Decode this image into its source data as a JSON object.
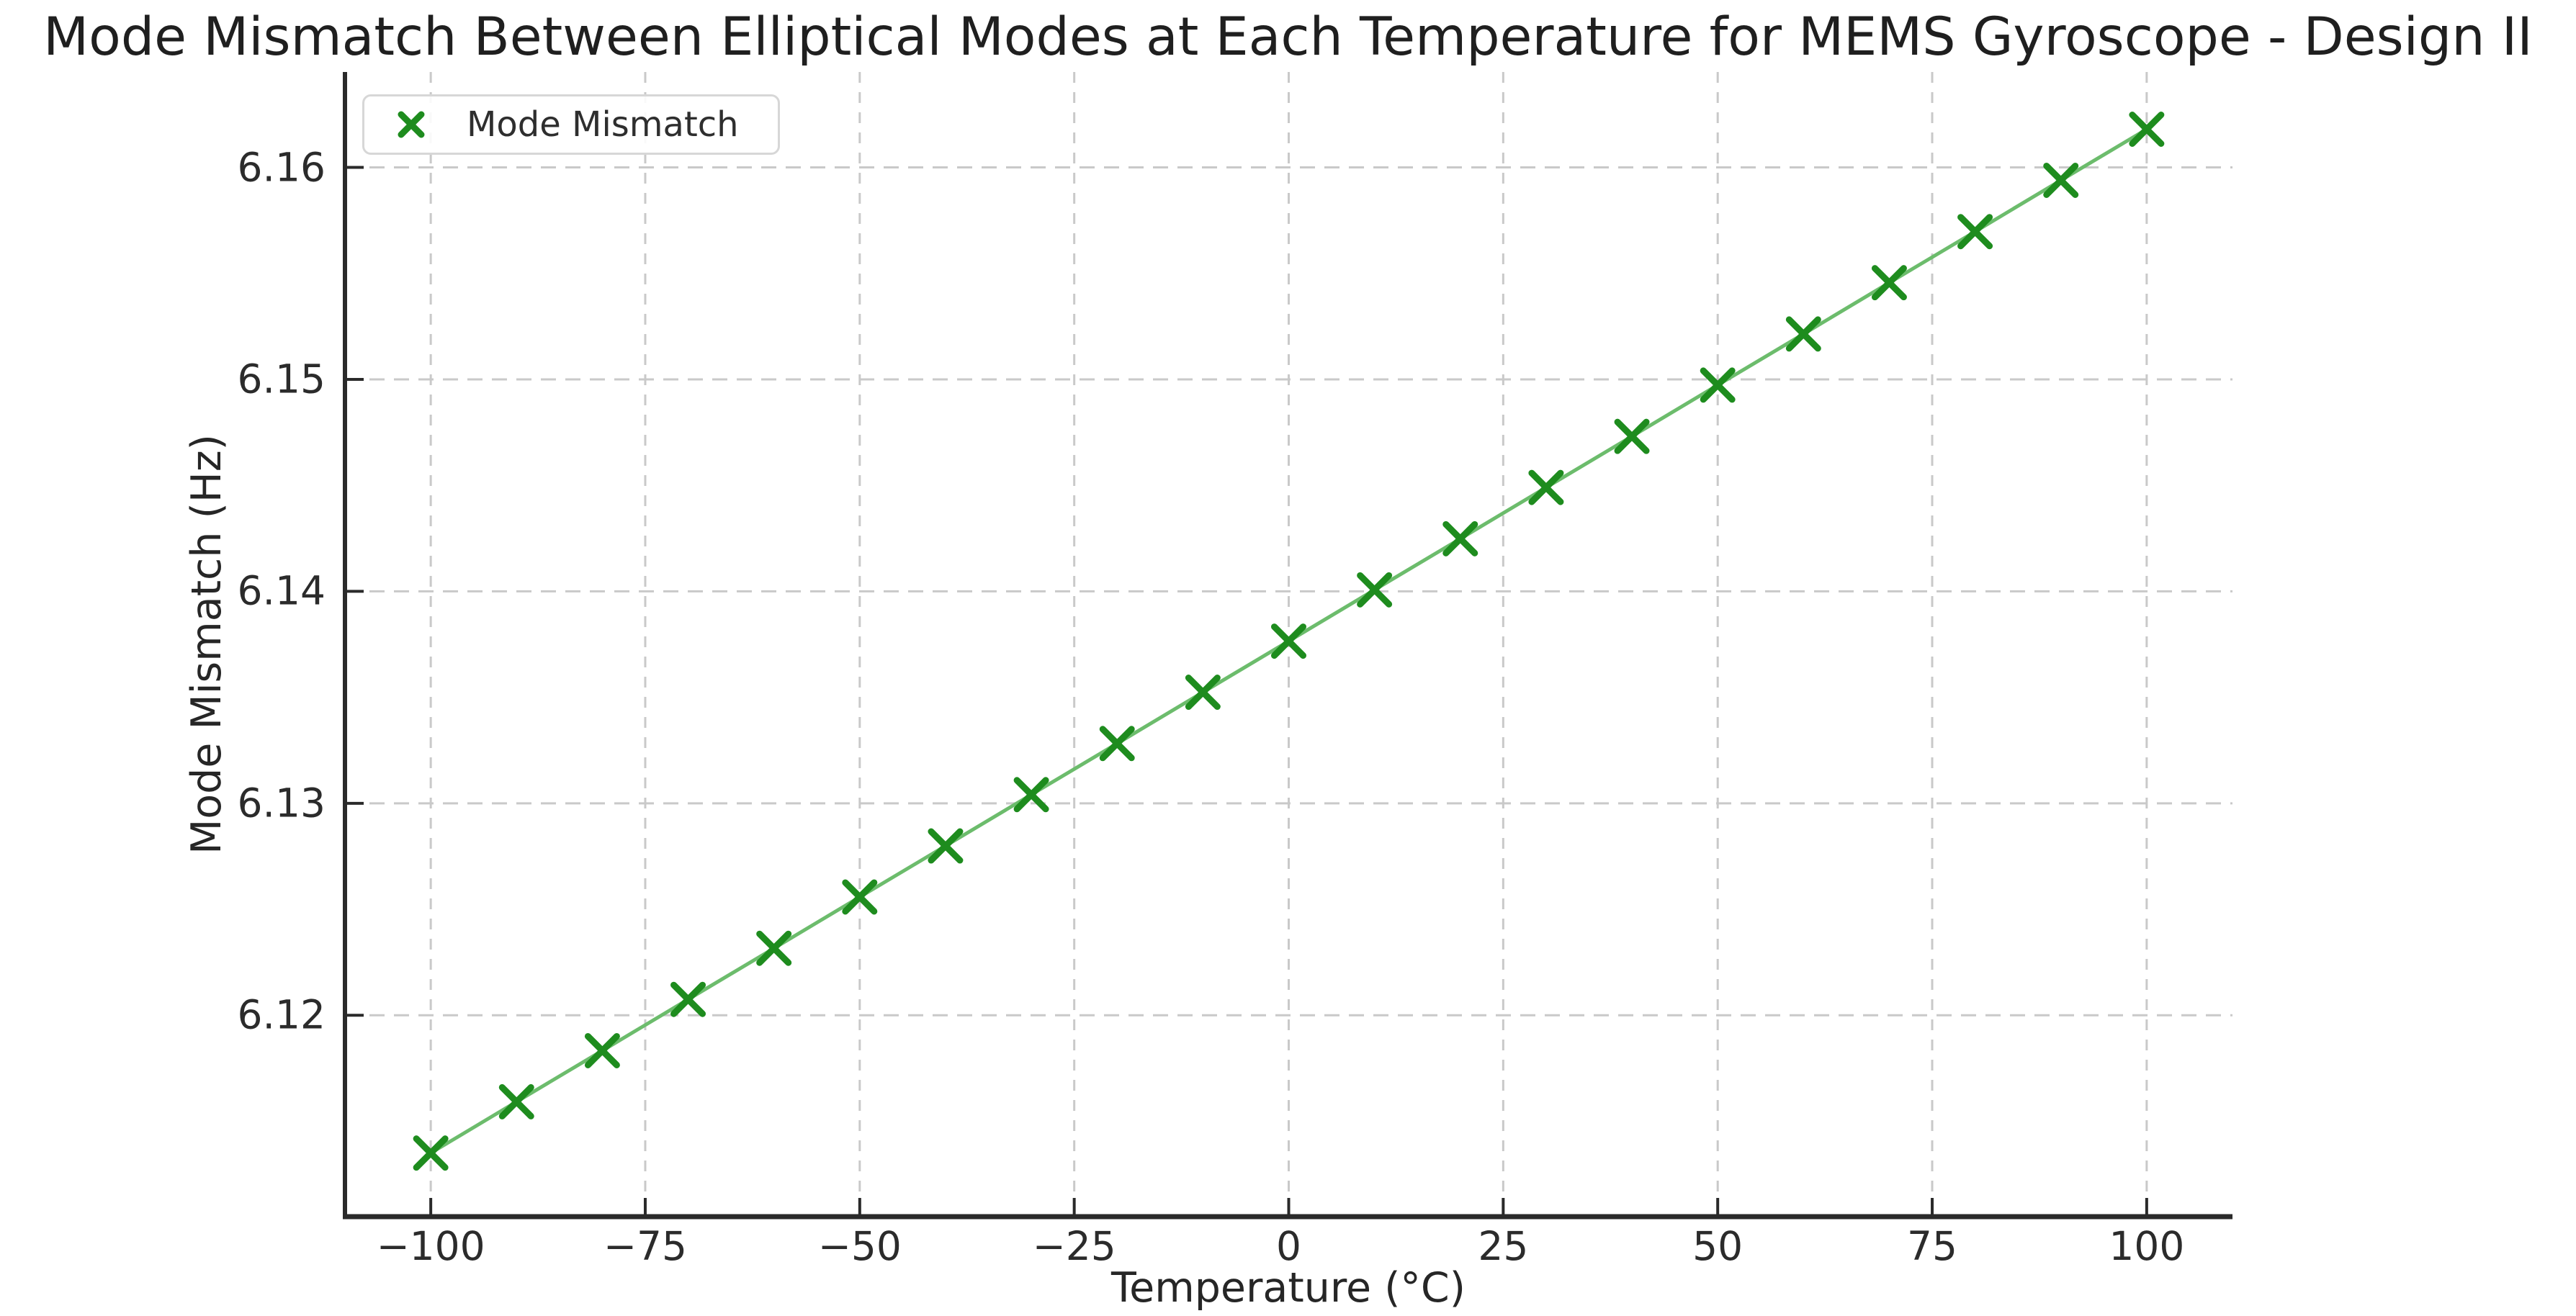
{
  "chart_data": {
    "type": "line",
    "title": "Mode Mismatch Between Elliptical Modes at Each Temperature for MEMS Gyroscope - Design II",
    "xlabel": "Temperature (°C)",
    "ylabel": "Mode Mismatch (Hz)",
    "legend": {
      "entries": [
        "Mode Mismatch"
      ],
      "position": "upper left",
      "marker": "x"
    },
    "series": [
      {
        "name": "Mode Mismatch",
        "marker": "x",
        "x": [
          -100,
          -90,
          -80,
          -70,
          -60,
          -50,
          -40,
          -30,
          -20,
          -10,
          0,
          10,
          20,
          30,
          40,
          50,
          60,
          70,
          80,
          90,
          100
        ],
        "y": [
          6.1135,
          6.11592,
          6.11833,
          6.12075,
          6.12316,
          6.12558,
          6.12799,
          6.13041,
          6.13282,
          6.13524,
          6.13765,
          6.14007,
          6.14248,
          6.1449,
          6.14731,
          6.14973,
          6.15214,
          6.15456,
          6.15697,
          6.15939,
          6.1618
        ]
      }
    ],
    "xlim": [
      -110,
      110
    ],
    "ylim": [
      6.1105,
      6.1645
    ],
    "xticks": {
      "values": [
        -100,
        -75,
        -50,
        -25,
        0,
        25,
        50,
        75,
        100
      ],
      "labels": [
        "−100",
        "−75",
        "−50",
        "−25",
        "0",
        "25",
        "50",
        "75",
        "100"
      ]
    },
    "yticks": {
      "values": [
        6.12,
        6.13,
        6.14,
        6.15,
        6.16
      ],
      "labels": [
        "6.12",
        "6.13",
        "6.14",
        "6.15",
        "6.16"
      ]
    },
    "grid": {
      "visible": true,
      "style": "dashed"
    },
    "colors": {
      "marker": "#1e8c1e",
      "line": "#6cbc6c",
      "grid": "#c9c9c9",
      "spine": "#2a2a2a",
      "title_text": "#1f1f1f",
      "tick_text": "#2b2b2b",
      "legend_border": "#d7d7d7"
    }
  }
}
